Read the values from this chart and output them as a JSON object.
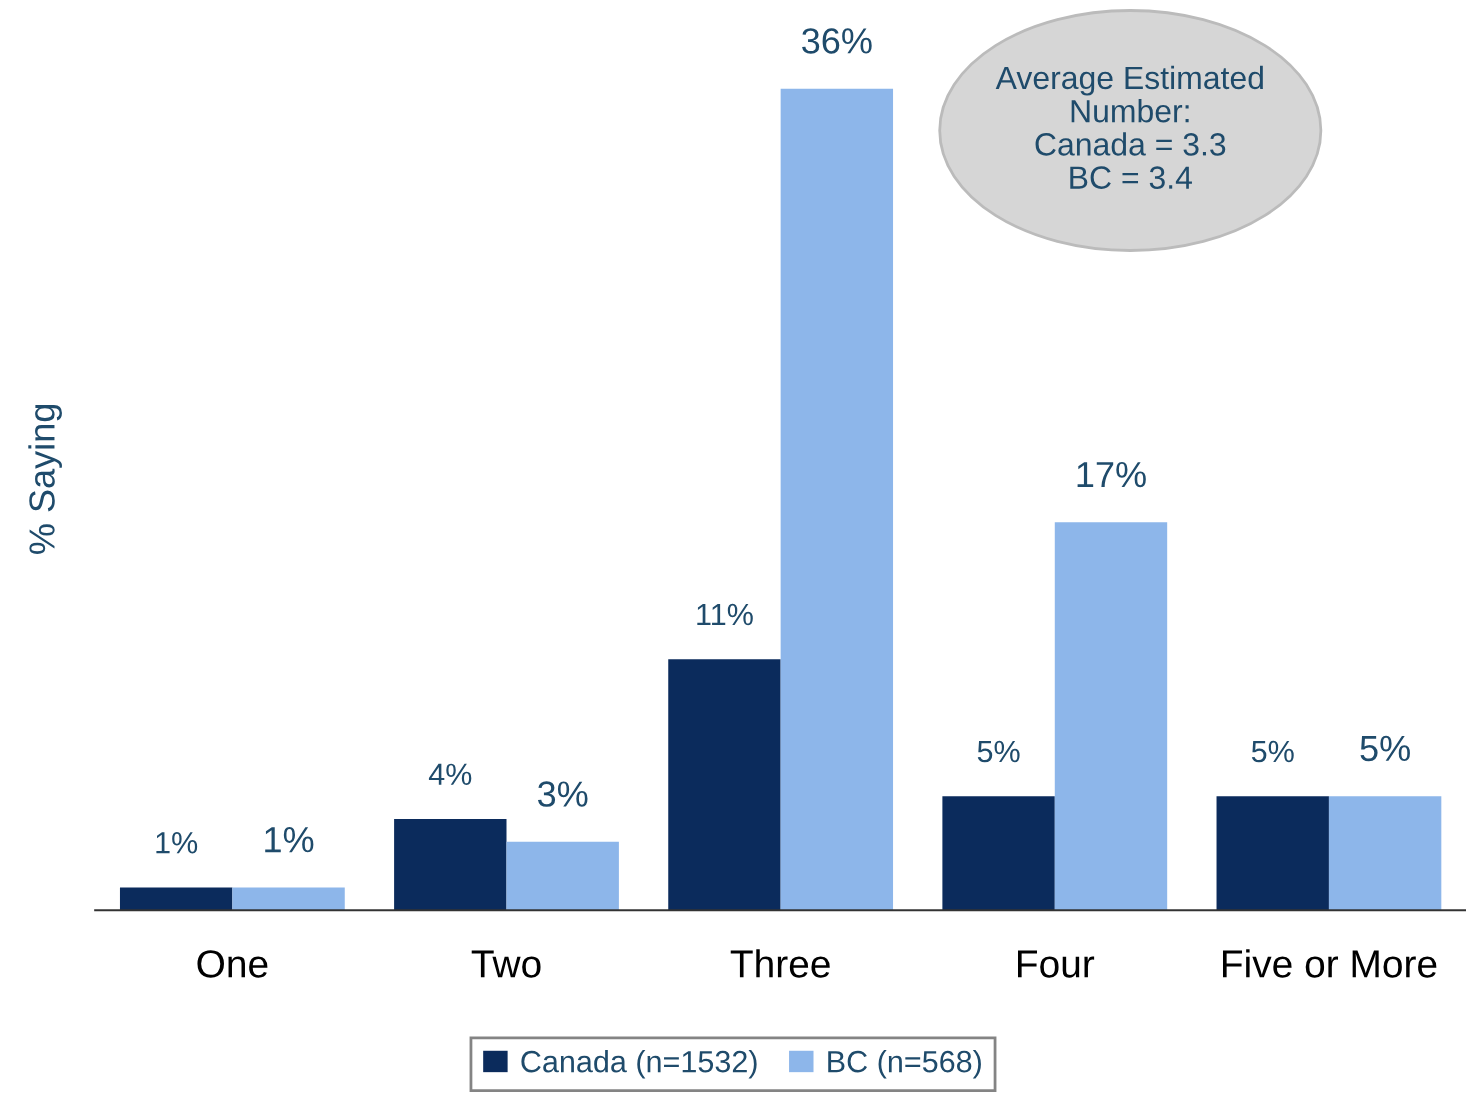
{
  "chart_data": {
    "type": "bar",
    "ylabel": "% Saying",
    "categories": [
      "One",
      "Two",
      "Three",
      "Four",
      "Five or More"
    ],
    "series": [
      {
        "name": "Canada (n=1532)",
        "color": "#0b2b5c",
        "values": [
          1,
          4,
          11,
          5,
          5
        ],
        "value_labels": [
          "1%",
          "4%",
          "11%",
          "5%",
          "5%"
        ]
      },
      {
        "name": "BC (n=568)",
        "color": "#8db6ea",
        "values": [
          1,
          3,
          36,
          17,
          5
        ],
        "value_labels": [
          "1%",
          "3%",
          "36%",
          "17%",
          "5%"
        ]
      }
    ],
    "annotations": [
      "Average Estimated\nNumber:\nCanada = 3.3\nBC = 3.4"
    ],
    "legend": "bottom",
    "grid": false
  }
}
